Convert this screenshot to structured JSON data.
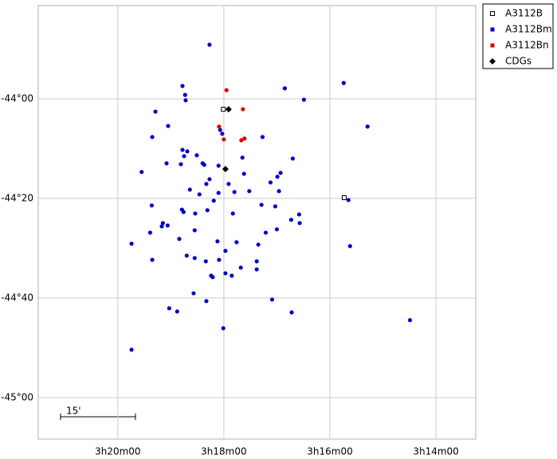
{
  "chart_data": {
    "type": "scatter",
    "xlim": [
      201.5,
      193.25
    ],
    "ylim": [
      -45.139,
      -43.688
    ],
    "xticks": [
      {
        "value": 200,
        "label": "3h20m00"
      },
      {
        "value": 198,
        "label": "3h18m00"
      },
      {
        "value": 196,
        "label": "3h16m00"
      },
      {
        "value": 194,
        "label": "3h14m00"
      }
    ],
    "yticks": [
      {
        "value": -44,
        "label": "-44°00"
      },
      {
        "value": -44.3333,
        "label": "-44°20"
      },
      {
        "value": -44.6667,
        "label": "-44°40"
      },
      {
        "value": -45,
        "label": "-45°00"
      }
    ],
    "grid": true,
    "legend": "outside-upper-right",
    "scale_bar_label": "15'",
    "series": [
      {
        "name": "A3112B",
        "color": "#000000",
        "marker": "open-square",
        "x": [
          198.01,
          195.73
        ],
        "values": [
          -44.035,
          -44.331
        ]
      },
      {
        "name": "A3112Bm",
        "color": "#0000cc",
        "marker": "circle",
        "x": [
          198.27,
          198.78,
          198.73,
          198.72,
          199.29,
          199.05,
          199.35,
          196.85,
          196.49,
          195.74,
          195.29,
          198.07,
          198.03,
          198.78,
          198.69,
          198.75,
          198.51,
          199.08,
          198.81,
          198.4,
          198.37,
          198.1,
          197.65,
          197.27,
          196.7,
          199.55,
          198.27,
          197.62,
          196.93,
          196.99,
          197.12,
          197.91,
          198.33,
          198.64,
          198.46,
          198.1,
          197.8,
          197.52,
          196.96,
          198.19,
          195.65,
          199.36,
          198.54,
          198.79,
          198.76,
          198.31,
          197.83,
          197.29,
          197.03,
          196.58,
          196.73,
          196.57,
          199.15,
          199.17,
          199.06,
          199.39,
          198.55,
          198.84,
          197.21,
          197.0,
          199.74,
          198.12,
          197.76,
          197.97,
          197.35,
          195.62,
          198.7,
          198.55,
          199.35,
          198.34,
          198.09,
          197.38,
          197.38,
          197.68,
          197.97,
          197.85,
          198.24,
          198.21,
          198.57,
          198.33,
          197.09,
          199.03,
          198.88,
          196.72,
          194.49,
          198.01,
          199.74
        ],
        "values": [
          -43.819,
          -43.957,
          -43.987,
          -44.005,
          -44.043,
          -44.091,
          -44.128,
          -43.965,
          -44.003,
          -43.947,
          -44.093,
          -44.104,
          -44.117,
          -44.171,
          -44.176,
          -44.192,
          -44.189,
          -44.216,
          -44.219,
          -44.216,
          -44.221,
          -44.224,
          -44.197,
          -44.128,
          -44.2,
          -44.245,
          -44.269,
          -44.251,
          -44.248,
          -44.261,
          -44.28,
          -44.285,
          -44.285,
          -44.304,
          -44.32,
          -44.315,
          -44.312,
          -44.309,
          -44.309,
          -44.341,
          -44.339,
          -44.357,
          -44.384,
          -44.371,
          -44.379,
          -44.373,
          -44.384,
          -44.355,
          -44.36,
          -44.387,
          -44.405,
          -44.416,
          -44.416,
          -44.427,
          -44.424,
          -44.448,
          -44.44,
          -44.469,
          -44.448,
          -44.437,
          -44.485,
          -44.477,
          -44.48,
          -44.509,
          -44.488,
          -44.493,
          -44.525,
          -44.533,
          -44.539,
          -44.544,
          -44.539,
          -44.544,
          -44.571,
          -44.565,
          -44.584,
          -44.592,
          -44.592,
          -44.597,
          -44.651,
          -44.677,
          -44.672,
          -44.701,
          -44.712,
          -44.715,
          -44.741,
          -44.768,
          -44.84
        ]
      },
      {
        "name": "A3112Bn",
        "color": "#dd0000",
        "marker": "circle",
        "x": [
          197.95,
          197.64,
          198.09,
          198.0,
          197.67,
          197.61
        ],
        "values": [
          -43.971,
          -44.035,
          -44.093,
          -44.136,
          -44.139,
          -44.133
        ]
      },
      {
        "name": "CDGs",
        "color": "#000000",
        "marker": "diamond",
        "x": [
          197.91,
          197.97
        ],
        "values": [
          -44.035,
          -44.235
        ]
      }
    ]
  }
}
